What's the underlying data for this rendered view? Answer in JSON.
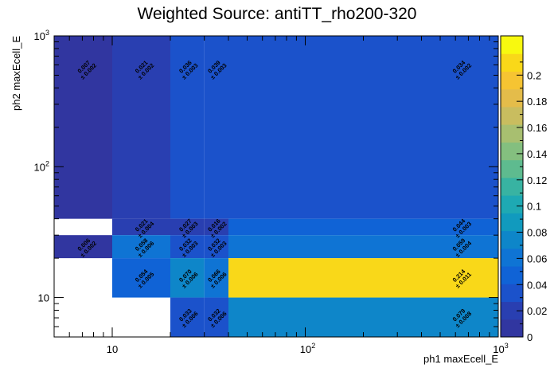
{
  "chart_data": {
    "type": "heatmap",
    "title": "Weighted Source: antiTT_rho200-320",
    "xlabel": "ph1 maxEcell_E",
    "ylabel": "ph2 maxEcell_E",
    "xscale": "log",
    "yscale": "log",
    "xlim": [
      5,
      1000
    ],
    "ylim": [
      5,
      1000
    ],
    "x_tick_labels": [
      {
        "value": 10,
        "base": "10",
        "exp": ""
      },
      {
        "value": 100,
        "base": "10",
        "exp": "2"
      },
      {
        "value": 1000,
        "base": "10",
        "exp": "3"
      }
    ],
    "y_tick_labels": [
      {
        "value": 10,
        "base": "10",
        "exp": ""
      },
      {
        "value": 100,
        "base": "10",
        "exp": "2"
      },
      {
        "value": 1000,
        "base": "10",
        "exp": "3"
      }
    ],
    "colorbar": {
      "min": 0,
      "max": 0.23,
      "ticks": [
        "0",
        "0.02",
        "0.04",
        "0.06",
        "0.08",
        "0.1",
        "0.12",
        "0.14",
        "0.16",
        "0.18",
        "0.2"
      ],
      "tick_values": [
        0,
        0.02,
        0.04,
        0.06,
        0.08,
        0.1,
        0.12,
        0.14,
        0.16,
        0.18,
        0.2
      ],
      "colors": [
        "#3136a0",
        "#293fb1",
        "#1b52cb",
        "#1063d6",
        "#0f74d4",
        "#0e86c9",
        "#119abe",
        "#1ea9b3",
        "#38b3a2",
        "#5ebb8f",
        "#84bf7f",
        "#a8bf70",
        "#c9bd5f",
        "#e4bc4a",
        "#f6c432",
        "#f9d819",
        "#f8f90f"
      ]
    },
    "cells": [
      {
        "x": [
          5,
          10
        ],
        "y": [
          40,
          1000
        ],
        "value": 0.007,
        "label": "0.007",
        "err": "± 0.002",
        "lx": 7.3,
        "ly": 560
      },
      {
        "x": [
          10,
          20
        ],
        "y": [
          40,
          1000
        ],
        "value": 0.021,
        "label": "0.021",
        "err": "± 0.002",
        "lx": 14.5,
        "ly": 560
      },
      {
        "x": [
          20,
          30
        ],
        "y": [
          40,
          1000
        ],
        "value": 0.036,
        "label": "0.036",
        "err": "± 0.003",
        "lx": 24.5,
        "ly": 560
      },
      {
        "x": [
          30,
          1000
        ],
        "y": [
          40,
          1000
        ],
        "value": 0.036,
        "label": "",
        "err": ""
      },
      {
        "x": [
          30,
          40
        ],
        "y": [
          40,
          1000
        ],
        "value": 0.039,
        "label": "0.039",
        "err": "± 0.003",
        "lx": 34.5,
        "ly": 560,
        "no_fill": true
      },
      {
        "x": [
          400,
          1000
        ],
        "y": [
          40,
          1000
        ],
        "value": 0.034,
        "label": "0.034",
        "err": "± 0.002",
        "lx": 640,
        "ly": 560,
        "no_fill": true
      },
      {
        "x": [
          10,
          20
        ],
        "y": [
          30,
          40
        ],
        "value": 0.021,
        "label": "0.021",
        "err": "± 0.004",
        "lx": 14.5,
        "ly": 34.5
      },
      {
        "x": [
          20,
          30
        ],
        "y": [
          30,
          40
        ],
        "value": 0.027,
        "label": "0.027",
        "err": "± 0.003",
        "lx": 24.5,
        "ly": 34.5
      },
      {
        "x": [
          30,
          40
        ],
        "y": [
          30,
          40
        ],
        "value": 0.016,
        "label": "0.016",
        "err": "± 0.002",
        "lx": 34.5,
        "ly": 34.5
      },
      {
        "x": [
          40,
          1000
        ],
        "y": [
          30,
          40
        ],
        "value": 0.044,
        "label": "0.044",
        "err": "± 0.003",
        "lx": 640,
        "ly": 34.5
      },
      {
        "x": [
          5,
          10
        ],
        "y": [
          20,
          30
        ],
        "value": 0.006,
        "label": "0.006",
        "err": "± 0.002",
        "lx": 7.3,
        "ly": 24.5
      },
      {
        "x": [
          10,
          20
        ],
        "y": [
          20,
          30
        ],
        "value": 0.058,
        "label": "0.058",
        "err": "± 0.006",
        "lx": 14.5,
        "ly": 24.5
      },
      {
        "x": [
          20,
          30
        ],
        "y": [
          20,
          30
        ],
        "value": 0.032,
        "label": "0.032",
        "err": "± 0.003",
        "lx": 24.5,
        "ly": 24.5
      },
      {
        "x": [
          30,
          40
        ],
        "y": [
          20,
          30
        ],
        "value": 0.032,
        "label": "0.032",
        "err": "± 0.003",
        "lx": 34.5,
        "ly": 24.5
      },
      {
        "x": [
          40,
          1000
        ],
        "y": [
          20,
          30
        ],
        "value": 0.059,
        "label": "0.059",
        "err": "± 0.004",
        "lx": 640,
        "ly": 24.5
      },
      {
        "x": [
          10,
          20
        ],
        "y": [
          10,
          20
        ],
        "value": 0.054,
        "label": "0.054",
        "err": "± 0.005",
        "lx": 14.5,
        "ly": 14.2
      },
      {
        "x": [
          20,
          30
        ],
        "y": [
          10,
          20
        ],
        "value": 0.07,
        "label": "0.070",
        "err": "± 0.006",
        "lx": 24.5,
        "ly": 14.2
      },
      {
        "x": [
          30,
          40
        ],
        "y": [
          10,
          20
        ],
        "value": 0.066,
        "label": "0.066",
        "err": "± 0.006",
        "lx": 34.5,
        "ly": 14.2
      },
      {
        "x": [
          40,
          1000
        ],
        "y": [
          10,
          20
        ],
        "value": 0.214,
        "label": "0.214",
        "err": "± 0.011",
        "lx": 640,
        "ly": 14.2
      },
      {
        "x": [
          20,
          30
        ],
        "y": [
          5,
          10
        ],
        "value": 0.033,
        "label": "0.033",
        "err": "± 0.006",
        "lx": 24.5,
        "ly": 7.1
      },
      {
        "x": [
          30,
          40
        ],
        "y": [
          5,
          10
        ],
        "value": 0.032,
        "label": "0.032",
        "err": "± 0.006",
        "lx": 34.5,
        "ly": 7.1
      },
      {
        "x": [
          40,
          1000
        ],
        "y": [
          5,
          10
        ],
        "value": 0.079,
        "label": "0.079",
        "err": "± 0.008",
        "lx": 640,
        "ly": 7.1
      }
    ]
  }
}
